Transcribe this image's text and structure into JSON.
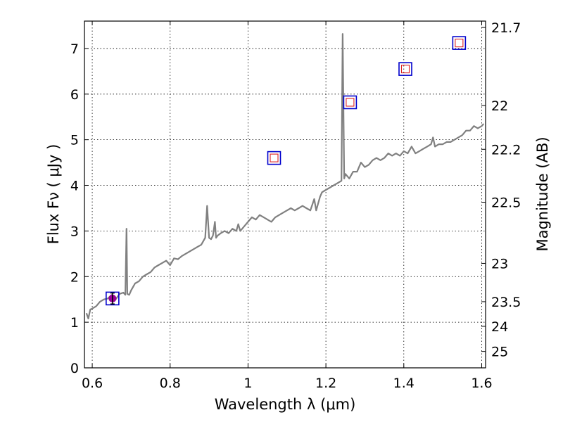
{
  "chart_data": {
    "type": "line",
    "title": "",
    "xlabel": "Wavelength  λ (μm)",
    "ylabel": "Flux  Fν  ( μJy )",
    "y2label": "Magnitude (AB)",
    "xlim": [
      0.58,
      1.61
    ],
    "ylim": [
      0,
      7.6
    ],
    "grid": true,
    "x_ticks": [
      0.6,
      0.8,
      1.0,
      1.2,
      1.4,
      1.6
    ],
    "x_tick_labels": [
      "0.6",
      "0.8",
      "1",
      "1.2",
      "1.4",
      "1.6"
    ],
    "y_ticks": [
      0,
      1,
      2,
      3,
      4,
      5,
      6,
      7
    ],
    "y_tick_labels": [
      "0",
      "1",
      "2",
      "3",
      "4",
      "5",
      "6",
      "7"
    ],
    "right_ticks": [
      {
        "label": "21.7",
        "flux": 7.46
      },
      {
        "label": "22",
        "flux": 5.75
      },
      {
        "label": "22.2",
        "flux": 4.79
      },
      {
        "label": "22.5",
        "flux": 3.63
      },
      {
        "label": "23",
        "flux": 2.29
      },
      {
        "label": "23.5",
        "flux": 1.45
      },
      {
        "label": "24",
        "flux": 0.91
      },
      {
        "label": "25",
        "flux": 0.36
      }
    ],
    "series": [
      {
        "type": "line",
        "color": "#808080",
        "x": [
          0.585,
          0.59,
          0.595,
          0.6,
          0.61,
          0.62,
          0.63,
          0.64,
          0.65,
          0.66,
          0.67,
          0.68,
          0.685,
          0.688,
          0.69,
          0.695,
          0.7,
          0.71,
          0.72,
          0.73,
          0.74,
          0.75,
          0.76,
          0.77,
          0.78,
          0.79,
          0.8,
          0.81,
          0.82,
          0.83,
          0.84,
          0.85,
          0.86,
          0.87,
          0.88,
          0.89,
          0.895,
          0.9,
          0.905,
          0.91,
          0.915,
          0.918,
          0.922,
          0.93,
          0.94,
          0.95,
          0.96,
          0.97,
          0.975,
          0.98,
          0.99,
          1.0,
          1.01,
          1.02,
          1.03,
          1.04,
          1.05,
          1.06,
          1.07,
          1.08,
          1.09,
          1.1,
          1.11,
          1.12,
          1.13,
          1.14,
          1.15,
          1.16,
          1.17,
          1.175,
          1.18,
          1.185,
          1.19,
          1.2,
          1.21,
          1.22,
          1.23,
          1.24,
          1.243,
          1.247,
          1.25,
          1.26,
          1.27,
          1.28,
          1.29,
          1.3,
          1.31,
          1.32,
          1.33,
          1.34,
          1.35,
          1.36,
          1.37,
          1.38,
          1.39,
          1.4,
          1.41,
          1.42,
          1.43,
          1.44,
          1.45,
          1.46,
          1.47,
          1.475,
          1.48,
          1.49,
          1.5,
          1.51,
          1.52,
          1.53,
          1.54,
          1.55,
          1.56,
          1.57,
          1.58,
          1.59,
          1.6,
          1.605
        ],
        "y": [
          1.2,
          1.08,
          1.28,
          1.3,
          1.35,
          1.45,
          1.5,
          1.52,
          1.6,
          1.5,
          1.62,
          1.65,
          1.6,
          3.05,
          1.62,
          1.6,
          1.7,
          1.85,
          1.9,
          2.0,
          2.05,
          2.1,
          2.2,
          2.25,
          2.3,
          2.35,
          2.25,
          2.4,
          2.38,
          2.45,
          2.5,
          2.55,
          2.6,
          2.65,
          2.7,
          2.85,
          3.55,
          2.85,
          2.82,
          2.9,
          3.2,
          2.85,
          2.9,
          2.95,
          3.0,
          2.95,
          3.05,
          3.0,
          3.15,
          3.0,
          3.1,
          3.2,
          3.3,
          3.25,
          3.35,
          3.3,
          3.25,
          3.2,
          3.3,
          3.35,
          3.4,
          3.45,
          3.5,
          3.45,
          3.5,
          3.55,
          3.5,
          3.45,
          3.7,
          3.45,
          3.6,
          3.75,
          3.85,
          3.9,
          3.95,
          4.0,
          4.05,
          4.1,
          7.32,
          4.15,
          4.25,
          4.15,
          4.3,
          4.3,
          4.5,
          4.4,
          4.45,
          4.55,
          4.6,
          4.55,
          4.6,
          4.7,
          4.65,
          4.7,
          4.65,
          4.75,
          4.7,
          4.85,
          4.7,
          4.75,
          4.8,
          4.85,
          4.9,
          5.05,
          4.85,
          4.9,
          4.9,
          4.95,
          4.95,
          5.0,
          5.05,
          5.1,
          5.2,
          5.2,
          5.3,
          5.25,
          5.3,
          5.35
        ]
      },
      {
        "type": "markers",
        "marker": "square",
        "facecolor": "none",
        "edgecolor": "#0000cc",
        "x": [
          0.652,
          1.067,
          1.262,
          1.404,
          1.542
        ],
        "y": [
          1.52,
          4.6,
          5.82,
          6.55,
          7.12
        ]
      },
      {
        "type": "markers",
        "marker": "square-small",
        "facecolor": "none",
        "edgecolor": "#dd2222",
        "x": [
          1.067,
          1.262,
          1.404,
          1.542
        ],
        "y": [
          4.6,
          5.82,
          6.55,
          7.12
        ]
      },
      {
        "type": "errorbar",
        "color": "#990099",
        "x": [
          0.652
        ],
        "y": [
          1.52
        ],
        "yerr": [
          0.12
        ]
      }
    ]
  }
}
